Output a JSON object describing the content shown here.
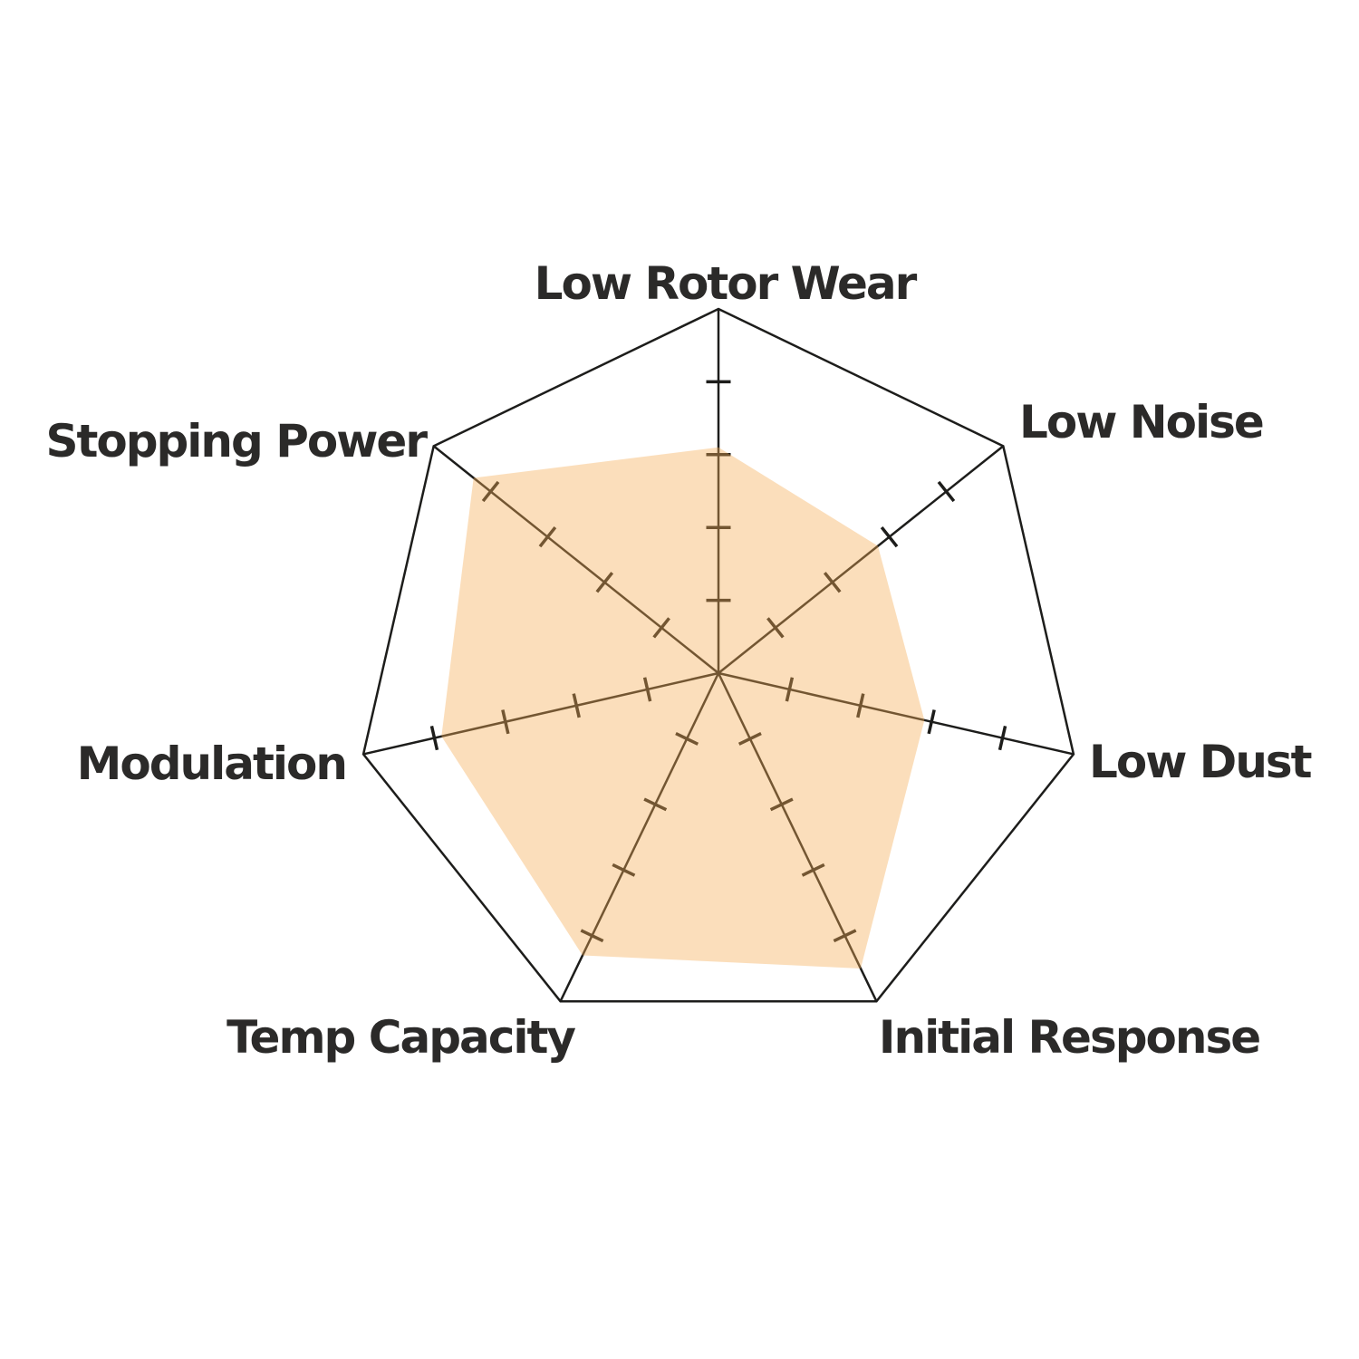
{
  "chart_data": {
    "type": "radar",
    "title": "",
    "categories": [
      "Low Rotor Wear",
      "Low Noise",
      "Low Dust",
      "Initial Response",
      "Temp Capacity",
      "Modulation",
      "Stopping Power"
    ],
    "values": [
      3.1,
      2.8,
      2.9,
      4.5,
      4.3,
      3.9,
      4.3
    ],
    "scale": {
      "min": 0,
      "max": 5,
      "tick_interval": 1,
      "ticks_shown": [
        1,
        2,
        3,
        4
      ]
    },
    "layout_hints": {
      "start_axis": "top",
      "direction": "clockwise",
      "grid": "axes-with-ticks-and-outer-ring-only",
      "legend": "none",
      "background": "#ffffff"
    },
    "colors": {
      "fill": "rgba(246, 173, 85, 0.40)",
      "axis_line": "#1d1d1b",
      "label_text": "#2b2a29"
    }
  }
}
